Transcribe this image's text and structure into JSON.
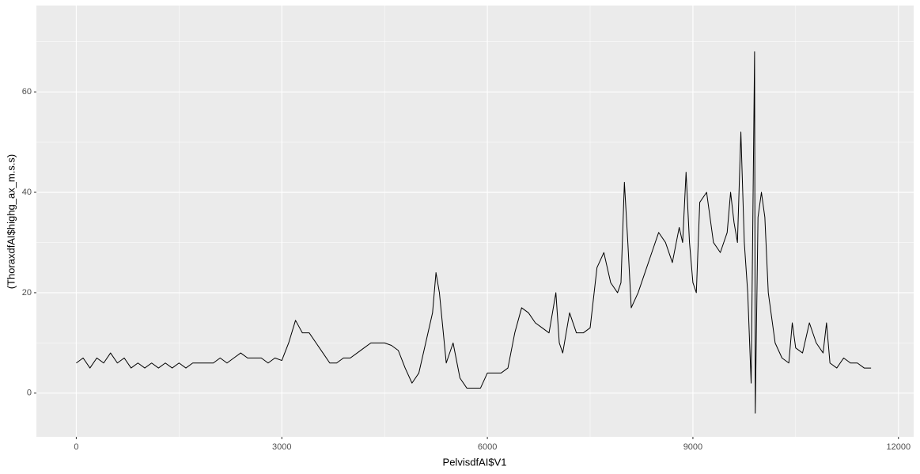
{
  "chart_data": {
    "type": "line",
    "x_label": "PelvisdfAI$V1",
    "y_label": "(ThoraxdfAI$highg_ax_m.s.s)",
    "xlim": [
      -582,
      12222
    ],
    "ylim": [
      -8.7,
      77.2
    ],
    "xticks": [
      0,
      3000,
      6000,
      9000,
      12000
    ],
    "yticks": [
      0,
      20,
      40,
      60
    ],
    "x_minor_breaks": [
      1500,
      4500,
      7500,
      10500
    ],
    "y_minor_breaks": [
      10,
      30,
      50,
      70
    ],
    "grid": true,
    "x": [
      0,
      100,
      200,
      300,
      400,
      500,
      600,
      700,
      800,
      900,
      1000,
      1100,
      1200,
      1300,
      1400,
      1500,
      1600,
      1700,
      1800,
      1900,
      2000,
      2100,
      2200,
      2300,
      2400,
      2500,
      2600,
      2700,
      2800,
      2900,
      3000,
      3100,
      3200,
      3300,
      3400,
      3500,
      3600,
      3700,
      3800,
      3900,
      4000,
      4100,
      4200,
      4300,
      4400,
      4500,
      4600,
      4700,
      4800,
      4900,
      5000,
      5100,
      5200,
      5250,
      5300,
      5400,
      5500,
      5600,
      5700,
      5800,
      5900,
      6000,
      6100,
      6200,
      6300,
      6400,
      6500,
      6600,
      6700,
      6800,
      6900,
      7000,
      7050,
      7100,
      7200,
      7300,
      7400,
      7500,
      7600,
      7700,
      7800,
      7900,
      7950,
      8000,
      8050,
      8100,
      8200,
      8300,
      8400,
      8500,
      8600,
      8700,
      8800,
      8850,
      8900,
      8950,
      9000,
      9050,
      9100,
      9200,
      9300,
      9400,
      9500,
      9550,
      9600,
      9650,
      9700,
      9750,
      9800,
      9850,
      9900,
      9910,
      9950,
      10000,
      10050,
      10100,
      10200,
      10300,
      10400,
      10450,
      10500,
      10600,
      10700,
      10800,
      10900,
      10950,
      11000,
      11100,
      11200,
      11300,
      11400,
      11500,
      11600
    ],
    "series": [
      {
        "name": "ThoraxdfAI$highg_ax_m.s.s",
        "color": "#000000",
        "values": [
          6,
          7,
          5,
          7,
          6,
          8,
          6,
          7,
          5,
          6,
          5,
          6,
          5,
          6,
          5,
          6,
          5,
          6,
          6,
          6,
          6,
          7,
          6,
          7,
          8,
          7,
          7,
          7,
          6,
          7,
          6.5,
          10,
          14.5,
          12,
          12,
          10,
          8,
          6,
          6,
          7,
          7,
          8,
          9,
          10,
          10,
          10,
          9.5,
          8.5,
          5,
          2,
          4,
          10,
          16,
          24,
          20,
          6,
          10,
          3,
          1,
          1,
          1,
          4,
          4,
          4,
          5,
          12,
          17,
          16,
          14,
          13,
          12,
          20,
          10,
          8,
          16,
          12,
          12,
          13,
          25,
          28,
          22,
          20,
          22,
          42,
          30,
          17,
          20,
          24,
          28,
          32,
          30,
          26,
          33,
          30,
          44,
          30,
          22,
          20,
          38,
          40,
          30,
          28,
          32,
          40,
          34,
          30,
          52,
          30,
          20,
          2,
          68,
          -4,
          35,
          40,
          35,
          20,
          10,
          7,
          6,
          14,
          9,
          8,
          14,
          10,
          8,
          14,
          6,
          5,
          7,
          6,
          6,
          5,
          5
        ]
      }
    ]
  }
}
